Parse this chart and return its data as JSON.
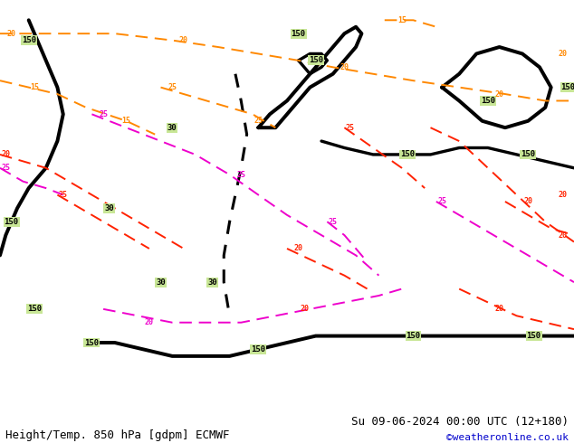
{
  "title_left": "Height/Temp. 850 hPa [gdpm] ECMWF",
  "title_right": "Su 09-06-2024 00:00 UTC (12+180)",
  "copyright": "©weatheronline.co.uk",
  "bg_ocean_color": "#c8c8c8",
  "bg_land_color": "#c8e696",
  "bg_highland_color": "#b4b4b4",
  "border_color": "#969696",
  "height_contour_color": "#000000",
  "temp_warm_color": "#ff2200",
  "temp_orange_color": "#ff8800",
  "temp_cold_color": "#ee00cc",
  "footer_font_size": 9,
  "copyright_color": "#0000cc",
  "map_lon_min": 20,
  "map_lon_max": 120,
  "map_lat_min": -5,
  "map_lat_max": 55,
  "fig_width": 6.34,
  "fig_height": 4.9,
  "fig_dpi": 100
}
